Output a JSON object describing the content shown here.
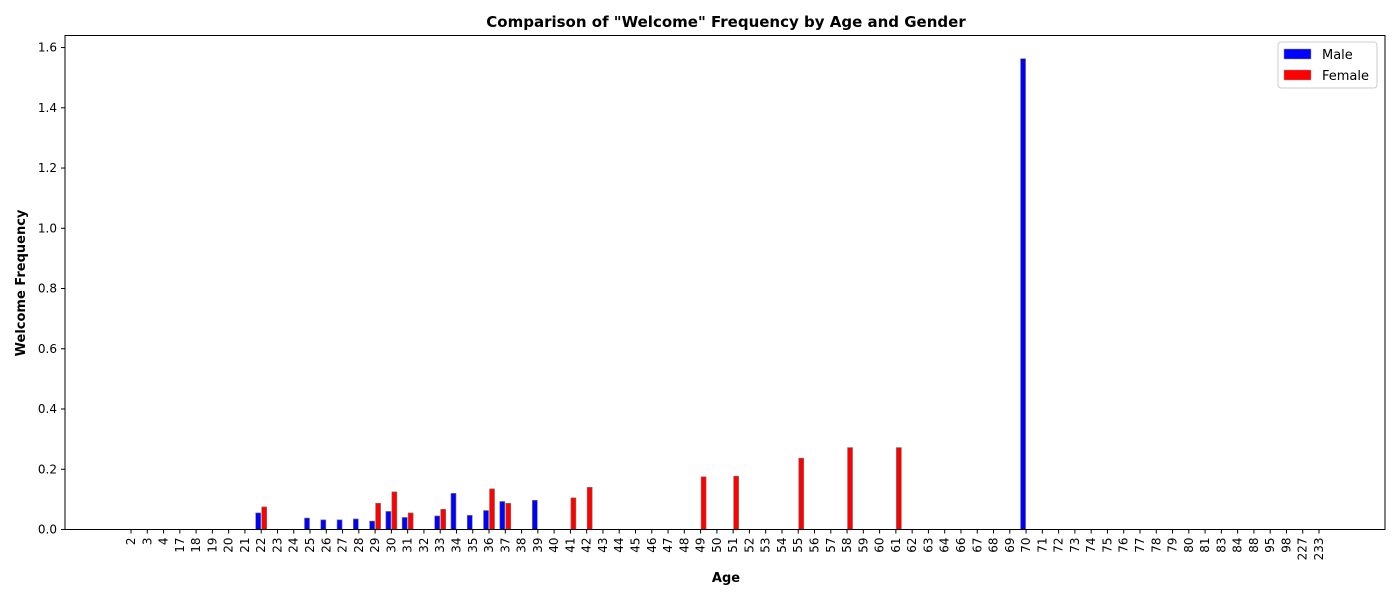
{
  "chart_data": {
    "type": "bar",
    "title": "Comparison of \"Welcome\" Frequency by Age and Gender",
    "xlabel": "Age",
    "ylabel": "Welcome Frequency",
    "ylim": [
      0,
      1.64
    ],
    "yticks": [
      "0.0",
      "0.2",
      "0.4",
      "0.6",
      "0.8",
      "1.0",
      "1.2",
      "1.4",
      "1.6"
    ],
    "grid": false,
    "legend_position": "top-right",
    "categories": [
      "2",
      "3",
      "4",
      "17",
      "18",
      "19",
      "20",
      "21",
      "22",
      "23",
      "24",
      "25",
      "26",
      "27",
      "28",
      "29",
      "30",
      "31",
      "32",
      "33",
      "34",
      "35",
      "36",
      "37",
      "38",
      "39",
      "40",
      "41",
      "42",
      "43",
      "44",
      "45",
      "46",
      "47",
      "48",
      "49",
      "50",
      "51",
      "52",
      "53",
      "54",
      "55",
      "56",
      "57",
      "58",
      "59",
      "60",
      "61",
      "62",
      "63",
      "64",
      "66",
      "67",
      "68",
      "69",
      "70",
      "71",
      "72",
      "73",
      "74",
      "75",
      "76",
      "77",
      "78",
      "79",
      "80",
      "81",
      "83",
      "84",
      "88",
      "95",
      "98",
      "227",
      "233"
    ],
    "series": [
      {
        "name": "Male",
        "color": "#0000ff",
        "values": [
          0,
          0,
          0,
          0,
          0,
          0,
          0,
          0,
          0.055,
          0,
          0,
          0.038,
          0.032,
          0.032,
          0.035,
          0.028,
          0.06,
          0.04,
          0,
          0.045,
          0.12,
          0.047,
          0.063,
          0.093,
          0,
          0.097,
          0,
          0,
          0,
          0,
          0,
          0,
          0,
          0,
          0,
          0,
          0,
          0,
          0,
          0,
          0,
          0,
          0,
          0,
          0,
          0,
          0,
          0,
          0,
          0,
          0,
          0,
          0,
          0,
          0,
          1.563,
          0,
          0,
          0,
          0,
          0,
          0,
          0,
          0,
          0,
          0,
          0,
          0,
          0,
          0,
          0,
          0,
          0,
          0
        ]
      },
      {
        "name": "Female",
        "color": "#ff0000",
        "values": [
          0,
          0,
          0,
          0,
          0,
          0,
          0,
          0,
          0.075,
          0,
          0,
          0,
          0,
          0,
          0,
          0.087,
          0.125,
          0.055,
          0,
          0.067,
          0,
          0,
          0.135,
          0.087,
          0,
          0,
          0,
          0.105,
          0.14,
          0,
          0,
          0,
          0,
          0,
          0,
          0.175,
          0,
          0.177,
          0,
          0,
          0,
          0.237,
          0,
          0,
          0.272,
          0,
          0,
          0.272,
          0,
          0,
          0,
          0,
          0,
          0,
          0,
          0,
          0,
          0,
          0,
          0,
          0,
          0,
          0,
          0,
          0,
          0,
          0,
          0,
          0,
          0,
          0,
          0,
          0,
          0
        ]
      }
    ]
  }
}
